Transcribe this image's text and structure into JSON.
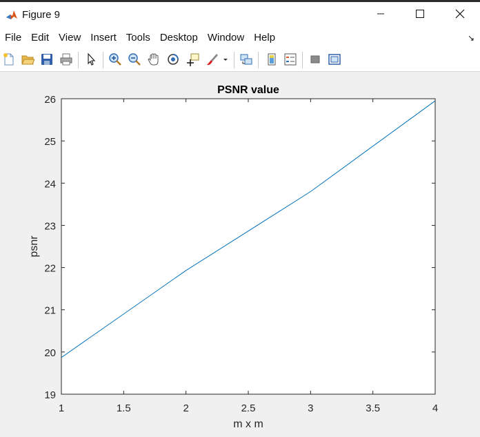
{
  "window": {
    "title": "Figure 9"
  },
  "menu": {
    "items": [
      "File",
      "Edit",
      "View",
      "Insert",
      "Tools",
      "Desktop",
      "Window",
      "Help"
    ]
  },
  "toolbar": {
    "icons": [
      "new-figure-icon",
      "open-file-icon",
      "save-icon",
      "print-icon",
      "pointer-icon",
      "zoom-in-icon",
      "zoom-out-icon",
      "pan-hand-icon",
      "rotate-3d-icon",
      "data-cursor-icon",
      "brush-icon",
      "link-plot-icon",
      "colorbar-icon",
      "legend-icon",
      "hide-plot-tools-icon",
      "show-plot-tools-icon"
    ]
  },
  "chart_data": {
    "type": "line",
    "title": "PSNR value",
    "xlabel": "m x m",
    "ylabel": "psnr",
    "xlim": [
      1,
      4
    ],
    "ylim": [
      19,
      26
    ],
    "xticks": [
      "1",
      "1.5",
      "2",
      "2.5",
      "3",
      "3.5",
      "4"
    ],
    "yticks": [
      "19",
      "20",
      "21",
      "22",
      "23",
      "24",
      "25",
      "26"
    ],
    "grid": false,
    "series": [
      {
        "color": "#0072bd",
        "x": [
          1,
          2,
          3,
          4
        ],
        "y": [
          19.87,
          21.93,
          23.8,
          25.95
        ]
      }
    ]
  }
}
